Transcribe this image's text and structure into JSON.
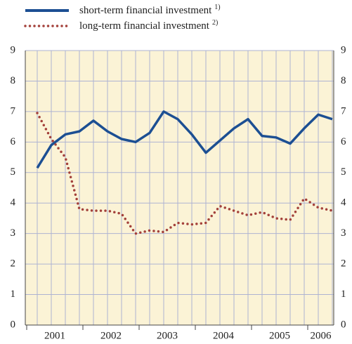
{
  "chart_data": {
    "type": "line",
    "categories": [
      "2001",
      null,
      null,
      null,
      "2002",
      null,
      null,
      null,
      "2003",
      null,
      null,
      null,
      "2004",
      null,
      null,
      null,
      "2005",
      null,
      null,
      null,
      "2006",
      null
    ],
    "series": [
      {
        "name": "short-term financial investment",
        "note": "1)",
        "color": "#1c4f93",
        "style": "solid",
        "values": [
          5.15,
          5.9,
          6.25,
          6.35,
          6.7,
          6.35,
          6.1,
          6.0,
          6.3,
          7.0,
          6.75,
          6.25,
          5.65,
          6.05,
          6.45,
          6.75,
          6.2,
          6.15,
          5.95,
          6.45,
          6.9,
          6.75
        ]
      },
      {
        "name": "long-term financial investment",
        "note": "2)",
        "color": "#a3403a",
        "style": "dotted",
        "values": [
          6.95,
          6.1,
          5.5,
          3.8,
          3.75,
          3.75,
          3.65,
          3.0,
          3.1,
          3.05,
          3.35,
          3.3,
          3.35,
          3.9,
          3.75,
          3.6,
          3.7,
          3.5,
          3.45,
          4.15,
          3.85,
          3.75
        ]
      }
    ],
    "ylim": [
      0,
      9
    ],
    "yticks": [
      0,
      1,
      2,
      3,
      4,
      5,
      6,
      7,
      8,
      9
    ],
    "grid": true
  }
}
